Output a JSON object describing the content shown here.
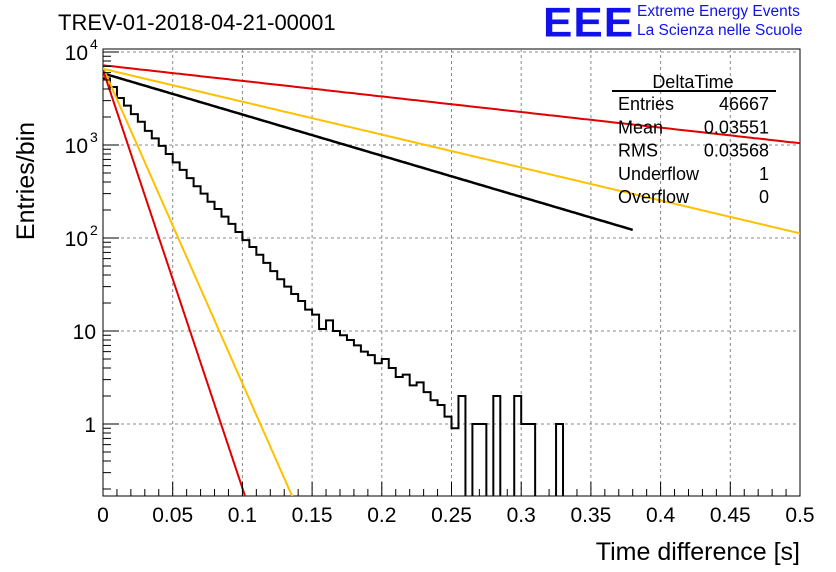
{
  "title": "TREV-01-2018-04-21-00001",
  "logo": {
    "mark": "EEE",
    "line1": "Extreme Energy Events",
    "line2": "La Scienza nelle Scuole",
    "color": "#1111ee"
  },
  "stats_box": {
    "title": "DeltaTime",
    "rows": [
      {
        "label": "Entries",
        "value": "46667"
      },
      {
        "label": "Mean",
        "value": "0.03551"
      },
      {
        "label": "RMS",
        "value": "0.03568"
      },
      {
        "label": "Underflow",
        "value": "1"
      },
      {
        "label": "Overflow",
        "value": "0"
      }
    ]
  },
  "chart_data": {
    "type": "line",
    "xlabel": "Time difference [s]",
    "ylabel": "Entries/bin",
    "xlim": [
      0,
      0.5
    ],
    "ylim": [
      0.16,
      12000
    ],
    "yscale": "log",
    "grid": true,
    "x_ticks": [
      "0",
      "0.05",
      "0.1",
      "0.15",
      "0.2",
      "0.25",
      "0.3",
      "0.35",
      "0.4",
      "0.45",
      "0.5"
    ],
    "y_ticks": [
      {
        "value": 1,
        "label": "1"
      },
      {
        "value": 10,
        "label": "10"
      },
      {
        "value": 100,
        "label": "10",
        "sup": "2"
      },
      {
        "value": 1000,
        "label": "10",
        "sup": "3"
      },
      {
        "value": 10000,
        "label": "10",
        "sup": "4"
      }
    ],
    "histogram": {
      "bin_width": 0.005,
      "color": "#000000",
      "values": [
        5200,
        4200,
        3200,
        2650,
        2150,
        1780,
        1420,
        1180,
        980,
        800,
        650,
        540,
        440,
        360,
        300,
        245,
        205,
        170,
        142,
        116,
        95,
        80,
        66,
        54,
        44,
        36,
        30,
        25,
        21,
        17,
        15,
        10.5,
        13,
        10,
        9,
        8,
        7,
        6,
        5.5,
        4.5,
        5,
        4,
        3.2,
        3.4,
        2.6,
        2.8,
        2.2,
        1.8,
        1.6,
        1.2,
        0.9,
        2,
        0,
        1,
        1,
        0.1,
        2,
        0,
        0,
        2,
        1,
        1,
        0.1,
        0.1,
        0,
        1,
        0.1,
        0.1,
        0,
        0,
        0,
        0,
        0,
        0,
        0,
        0,
        0,
        0,
        0,
        0,
        0,
        0,
        0,
        0,
        0,
        0,
        0,
        0,
        0,
        0,
        0,
        0,
        0,
        0,
        0,
        0,
        0,
        0,
        0,
        0
      ]
    },
    "series": [
      {
        "color": "#000000",
        "amplitude": 5900,
        "slope": -10.2,
        "xmax": 0.38
      },
      {
        "color": "#e00000",
        "amplitude": 7200,
        "slope": -3.86,
        "xmax": 0.5
      },
      {
        "color": "#ffc000",
        "amplitude": 6600,
        "slope": -8.15,
        "xmax": 0.5
      },
      {
        "color": "#ffc000",
        "amplitude": 6800,
        "slope": -78.2,
        "xmax": 0.14
      },
      {
        "color": "#e00000",
        "amplitude": 6400,
        "slope": -103.5,
        "xmax": 0.11
      }
    ]
  }
}
